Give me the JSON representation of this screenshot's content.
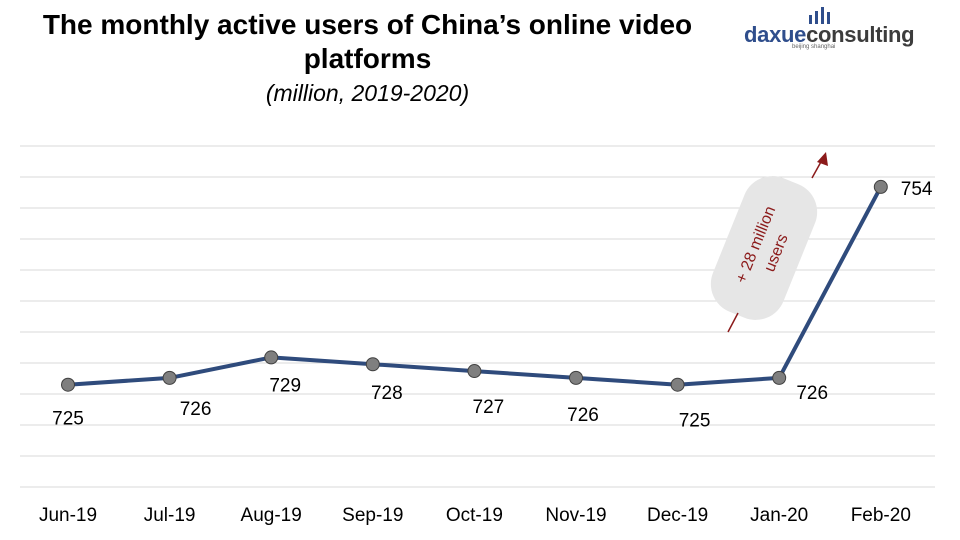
{
  "chart_data": {
    "type": "line",
    "title": "The monthly active users of China’s online video platforms",
    "subtitle": "(million, 2019-2020)",
    "categories": [
      "Jun-19",
      "Jul-19",
      "Aug-19",
      "Sep-19",
      "Oct-19",
      "Nov-19",
      "Dec-19",
      "Jan-20",
      "Feb-20"
    ],
    "series": [
      {
        "values": [
          725,
          726,
          729,
          728,
          727,
          726,
          725,
          726,
          754
        ]
      }
    ],
    "data_labels": [
      "725",
      "726",
      "729",
      "728",
      "727",
      "726",
      "725",
      "726",
      "754"
    ],
    "ylim": [
      710,
      760
    ],
    "grid": true,
    "legend": "none",
    "annotation": {
      "text_line1": "+ 28 million",
      "text_line2": "users"
    },
    "colors": {
      "line": "#2f4b7c",
      "marker": "#7f7f7f",
      "grid": "#d9d9d9",
      "annotation": "#8b1a1a",
      "annotation_bg": "#e6e6e6"
    }
  },
  "logo": {
    "part1": "daxue",
    "part2": "consulting",
    "tagline": "beijing shanghai"
  }
}
